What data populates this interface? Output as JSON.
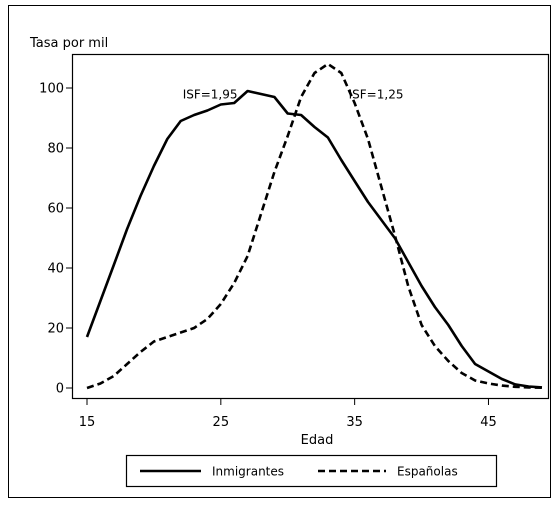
{
  "chart_data": {
    "type": "line",
    "title": "",
    "ylabel": "Tasa por mil",
    "xlabel": "Edad",
    "xlim": [
      15,
      49
    ],
    "ylim": [
      0,
      110
    ],
    "xticks": [
      15,
      25,
      35,
      45
    ],
    "yticks": [
      0,
      20,
      40,
      60,
      80,
      100
    ],
    "grid": false,
    "legend_position": "bottom",
    "annotations": [
      {
        "text": "ISF=1,95",
        "x": 24.2,
        "y": 98
      },
      {
        "text": "ISF=1,25",
        "x": 36.6,
        "y": 98
      }
    ],
    "series": [
      {
        "name": "Inmigrantes",
        "style": "solid",
        "x": [
          15,
          16,
          17,
          18,
          19,
          20,
          21,
          22,
          23,
          24,
          25,
          26,
          27,
          28,
          29,
          30,
          31,
          32,
          33,
          34,
          35,
          36,
          37,
          38,
          39,
          40,
          41,
          42,
          43,
          44,
          45,
          46,
          47,
          48,
          49
        ],
        "y": [
          17,
          29,
          41,
          53,
          64,
          74,
          83,
          89,
          91,
          92.5,
          94.5,
          95,
          99,
          98,
          97,
          91.5,
          91,
          87,
          83.5,
          76,
          69,
          62,
          56,
          50,
          42,
          34,
          27,
          21,
          14,
          8,
          5.5,
          3,
          1.2,
          0.5,
          0.2
        ]
      },
      {
        "name": "Españolas",
        "style": "dashed",
        "x": [
          15,
          16,
          17,
          18,
          19,
          20,
          21,
          22,
          23,
          24,
          25,
          26,
          27,
          28,
          29,
          30,
          31,
          32,
          33,
          34,
          35,
          36,
          37,
          38,
          39,
          40,
          41,
          42,
          43,
          44,
          45,
          46,
          47,
          48,
          49
        ],
        "y": [
          0,
          1.5,
          4,
          8,
          12,
          15.5,
          17,
          18.5,
          20,
          23,
          28,
          35,
          44,
          58,
          72,
          84,
          97,
          105,
          108,
          105,
          95,
          83,
          67,
          51,
          34,
          21,
          14,
          9,
          5,
          2.5,
          1.5,
          0.8,
          0.4,
          0.2,
          0.1
        ]
      }
    ]
  }
}
